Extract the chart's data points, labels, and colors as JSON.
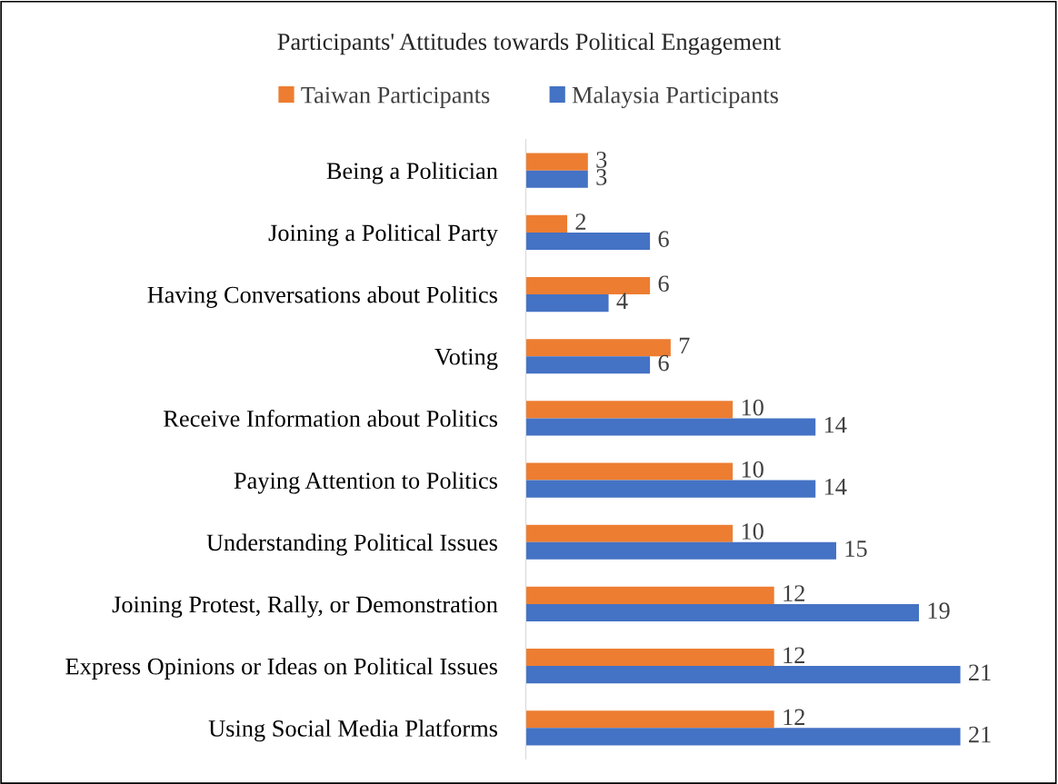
{
  "chart_data": {
    "type": "bar",
    "orientation": "horizontal",
    "title": "Participants' Attitudes towards Political Engagement",
    "categories": [
      "Being a Politician",
      "Joining a Political Party",
      "Having Conversations about Politics",
      "Voting",
      "Receive Information about Politics",
      "Paying Attention to Politics",
      "Understanding Political Issues",
      "Joining Protest, Rally, or Demonstration",
      "Express Opinions or Ideas on Political Issues",
      "Using Social Media Platforms"
    ],
    "series": [
      {
        "name": "Taiwan Participants",
        "color": "#ed7d31",
        "values": [
          3,
          2,
          6,
          7,
          10,
          10,
          10,
          12,
          12,
          12
        ]
      },
      {
        "name": "Malaysia Participants",
        "color": "#4472c4",
        "values": [
          3,
          6,
          4,
          6,
          14,
          14,
          15,
          19,
          21,
          21
        ]
      }
    ],
    "data_labels": true,
    "legend": "top",
    "grid": false,
    "tick_labels": "y"
  }
}
